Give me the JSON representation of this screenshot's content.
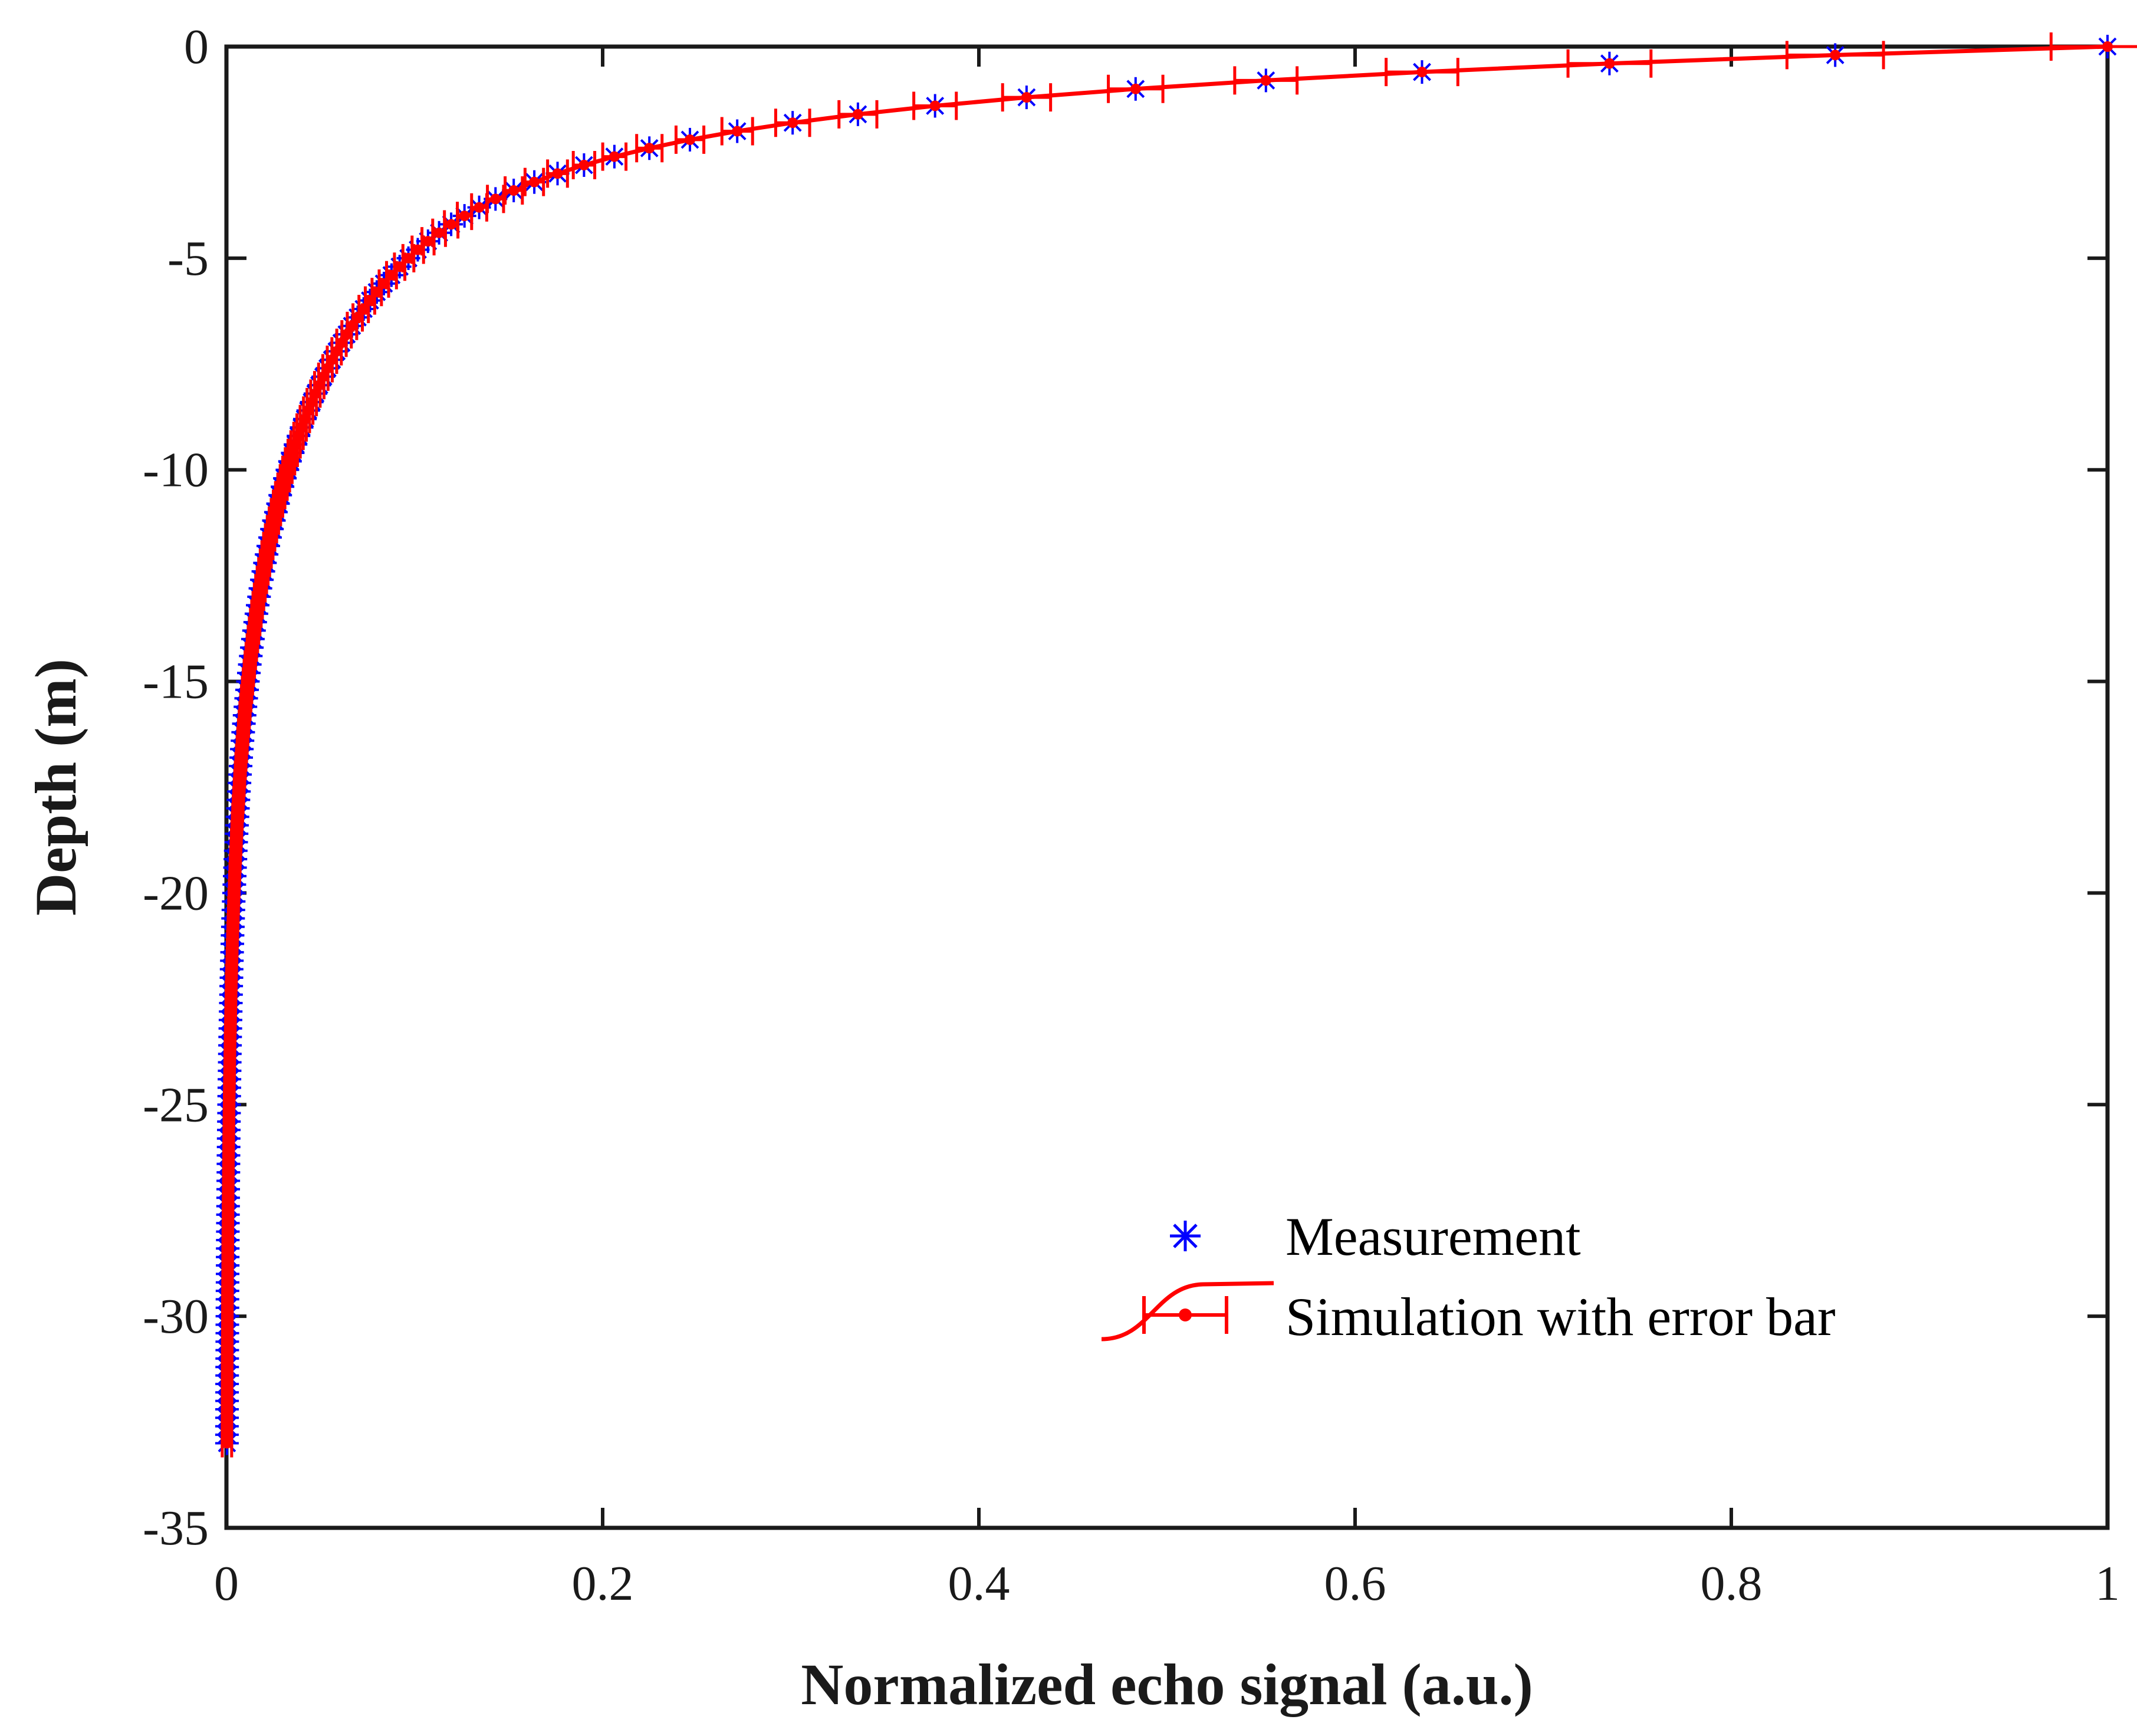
{
  "chart_data": {
    "type": "scatter",
    "title": "",
    "xlabel": "Normalized echo signal (a.u.)",
    "ylabel": "Depth (m)",
    "xlim": [
      0,
      1
    ],
    "ylim": [
      -35,
      0
    ],
    "xticks": [
      0,
      0.2,
      0.4,
      0.6,
      0.8,
      1
    ],
    "xtick_labels": [
      "0",
      "0.2",
      "0.4",
      "0.6",
      "0.8",
      "1"
    ],
    "yticks": [
      0,
      -5,
      -10,
      -15,
      -20,
      -25,
      -30,
      -35
    ],
    "ytick_labels": [
      "0",
      "-5",
      "-10",
      "-15",
      "-20",
      "-25",
      "-30",
      "-35"
    ],
    "grid": false,
    "legend_position": "bottom-right",
    "depth_range": [
      0,
      -33
    ],
    "depth_step": 0.2,
    "decay": {
      "near_surface_weight": 0.74,
      "near_surface_scale_m": 1.0,
      "deep_weight": 0.26,
      "deep_scale_m": 4.8
    },
    "error_fraction": 0.03,
    "series": [
      {
        "name": "Measurement",
        "label": "Measurement",
        "marker": "asterisk",
        "color": "#0000ff"
      },
      {
        "name": "Simulation with error bar",
        "label": "Simulation with error bar",
        "marker": "dot-errorbar",
        "color": "#ff0000"
      }
    ]
  },
  "colors": {
    "axis": "#1a1a1a",
    "measurement": "#0000ff",
    "simulation": "#ff0000"
  }
}
